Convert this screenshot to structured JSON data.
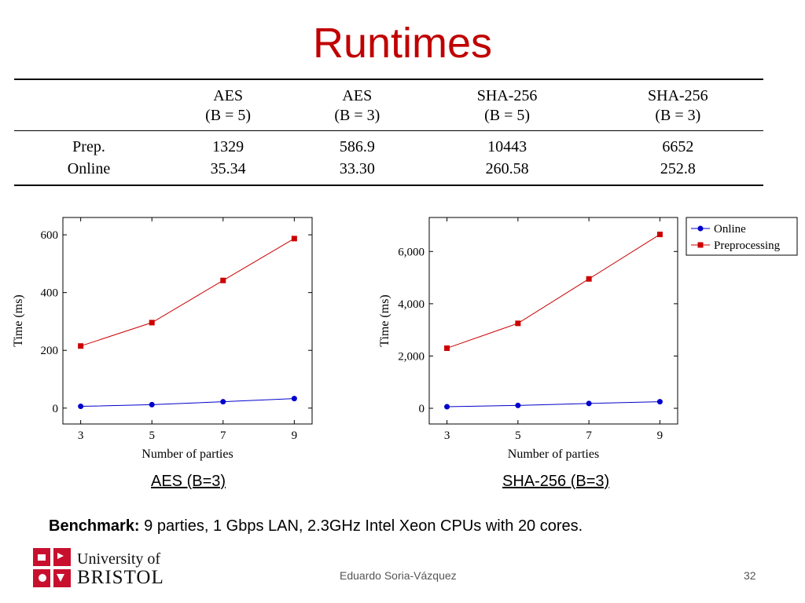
{
  "slide": {
    "title": "Runtimes",
    "author": "Eduardo Soria-Vázquez",
    "page_number": "32",
    "benchmark_label": "Benchmark:",
    "benchmark_text": " 9 parties, 1 Gbps LAN,  2.3GHz Intel Xeon CPUs with 20 cores.",
    "logo": {
      "line1": "University of",
      "line2": "BRISTOL"
    }
  },
  "table": {
    "headers": [
      {
        "name": "AES",
        "param": "(B = 5)"
      },
      {
        "name": "AES",
        "param": "(B = 3)"
      },
      {
        "name": "SHA-256",
        "param": "(B = 5)"
      },
      {
        "name": "SHA-256",
        "param": "(B = 3)"
      }
    ],
    "rows": [
      {
        "label": "Prep.",
        "values": [
          "1329",
          "586.9",
          "10443",
          "6652"
        ]
      },
      {
        "label": "Online",
        "values": [
          "35.34",
          "33.30",
          "260.58",
          "252.8"
        ]
      }
    ]
  },
  "chart_data": [
    {
      "type": "line",
      "caption": "AES (B=3)",
      "xlabel": "Number of parties",
      "ylabel": "Time (ms)",
      "x": [
        3,
        5,
        7,
        9
      ],
      "xlim": [
        2.5,
        9.5
      ],
      "ylim": [
        -55,
        660
      ],
      "yticks": [
        0,
        200,
        400,
        600
      ],
      "ytick_labels": [
        "0",
        "200",
        "400",
        "600"
      ],
      "grid": false,
      "series": [
        {
          "name": "Online",
          "color": "#0000cc",
          "marker": "circle",
          "values": [
            6,
            12,
            22,
            33
          ]
        },
        {
          "name": "Preprocessing",
          "color": "#cc0000",
          "marker": "square",
          "values": [
            215,
            296,
            442,
            587
          ]
        }
      ]
    },
    {
      "type": "line",
      "caption": "SHA-256 (B=3)",
      "xlabel": "Number of parties",
      "ylabel": "Time (ms)",
      "x": [
        3,
        5,
        7,
        9
      ],
      "xlim": [
        2.5,
        9.5
      ],
      "ylim": [
        -600,
        7300
      ],
      "yticks": [
        0,
        2000,
        4000,
        6000
      ],
      "ytick_labels": [
        "0",
        "2,000",
        "4,000",
        "6,000"
      ],
      "grid": false,
      "legend": {
        "placement": "outside-top-right",
        "entries": [
          "Online",
          "Preprocessing"
        ]
      },
      "series": [
        {
          "name": "Online",
          "color": "#0000cc",
          "marker": "circle",
          "values": [
            60,
            110,
            185,
            253
          ]
        },
        {
          "name": "Preprocessing",
          "color": "#cc0000",
          "marker": "square",
          "values": [
            2300,
            3250,
            4950,
            6652
          ]
        }
      ]
    }
  ]
}
